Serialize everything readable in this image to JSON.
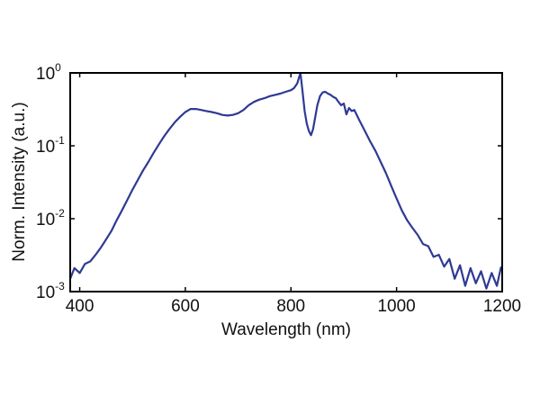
{
  "chart_data": {
    "type": "line",
    "title": "",
    "xlabel": "Wavelength (nm)",
    "ylabel": "Norm. Intensity (a.u.)",
    "xlim": [
      382,
      1200
    ],
    "ylim": [
      0.001,
      1
    ],
    "yscale": "log",
    "grid": false,
    "legend": null,
    "x_ticks": [
      400,
      600,
      800,
      1000,
      1200
    ],
    "x_tick_labels": [
      "400",
      "600",
      "800",
      "1000",
      "1200"
    ],
    "y_ticks": [
      1,
      0.1,
      0.01,
      0.001
    ],
    "y_tick_labels": [
      {
        "base": "10",
        "exp": "0"
      },
      {
        "base": "10",
        "exp": "-1"
      },
      {
        "base": "10",
        "exp": "-2"
      },
      {
        "base": "10",
        "exp": "-3"
      }
    ],
    "series": [
      {
        "name": "spectrum",
        "color": "#2E3A94",
        "x": [
          382,
          390,
          400,
          410,
          420,
          430,
          440,
          450,
          460,
          470,
          480,
          490,
          500,
          510,
          520,
          530,
          540,
          550,
          560,
          570,
          580,
          590,
          600,
          610,
          620,
          630,
          640,
          650,
          660,
          670,
          680,
          690,
          700,
          710,
          720,
          730,
          740,
          750,
          760,
          770,
          780,
          790,
          800,
          806,
          812,
          818,
          822,
          826,
          830,
          834,
          838,
          842,
          846,
          850,
          855,
          860,
          865,
          870,
          875,
          880,
          885,
          890,
          895,
          900,
          905,
          910,
          915,
          920,
          930,
          940,
          950,
          960,
          970,
          980,
          990,
          1000,
          1010,
          1020,
          1030,
          1040,
          1050,
          1060,
          1070,
          1080,
          1090,
          1100,
          1110,
          1120,
          1130,
          1140,
          1150,
          1160,
          1170,
          1180,
          1190,
          1198
        ],
        "y": [
          0.0015,
          0.0021,
          0.0018,
          0.0024,
          0.0026,
          0.0032,
          0.004,
          0.0052,
          0.0068,
          0.0095,
          0.013,
          0.018,
          0.025,
          0.034,
          0.046,
          0.06,
          0.08,
          0.105,
          0.135,
          0.17,
          0.21,
          0.25,
          0.29,
          0.32,
          0.32,
          0.31,
          0.3,
          0.29,
          0.28,
          0.265,
          0.26,
          0.265,
          0.28,
          0.31,
          0.36,
          0.4,
          0.43,
          0.45,
          0.48,
          0.5,
          0.52,
          0.55,
          0.58,
          0.62,
          0.72,
          1.0,
          0.55,
          0.3,
          0.2,
          0.16,
          0.14,
          0.17,
          0.25,
          0.36,
          0.48,
          0.54,
          0.55,
          0.52,
          0.5,
          0.47,
          0.45,
          0.4,
          0.36,
          0.38,
          0.27,
          0.33,
          0.3,
          0.31,
          0.22,
          0.16,
          0.115,
          0.085,
          0.06,
          0.042,
          0.028,
          0.019,
          0.013,
          0.0095,
          0.0075,
          0.006,
          0.0045,
          0.0042,
          0.003,
          0.0032,
          0.0022,
          0.0028,
          0.0015,
          0.0023,
          0.0012,
          0.0021,
          0.0013,
          0.0019,
          0.0011,
          0.0018,
          0.0012,
          0.0022
        ]
      }
    ]
  }
}
